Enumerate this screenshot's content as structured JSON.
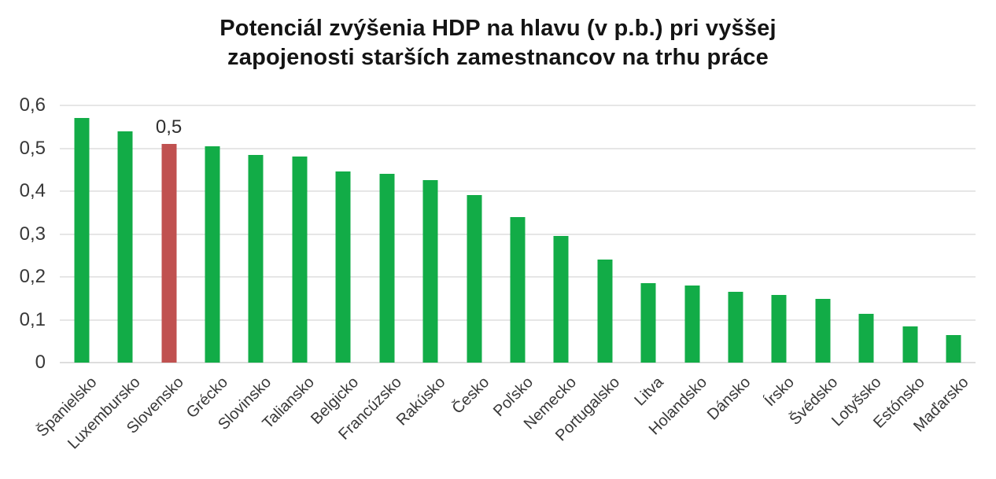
{
  "chart": {
    "title_line1": "Potenciál zvýšenia HDP na hlavu (v p.b.) pri vyššej",
    "title_line2": "zapojenosti starších zamestnancov na trhu práce"
  },
  "chart_data": {
    "type": "bar",
    "title": "Potenciál zvýšenia HDP na hlavu (v p.b.) pri vyššej zapojenosti starších zamestnancov na trhu práce",
    "xlabel": "",
    "ylabel": "",
    "categories": [
      "Španielsko",
      "Luxembursko",
      "Slovensko",
      "Grécko",
      "Slovinsko",
      "Taliansko",
      "Belgicko",
      "Francúzsko",
      "Rakúsko",
      "Česko",
      "Poľsko",
      "Nemecko",
      "Portugalsko",
      "Litva",
      "Holandsko",
      "Dánsko",
      "Írsko",
      "Švédsko",
      "Lotyšsko",
      "Estónsko",
      "Maďarsko"
    ],
    "values": [
      0.57,
      0.54,
      0.51,
      0.505,
      0.485,
      0.48,
      0.445,
      0.44,
      0.425,
      0.39,
      0.34,
      0.295,
      0.24,
      0.185,
      0.18,
      0.165,
      0.158,
      0.148,
      0.113,
      0.085,
      0.065
    ],
    "highlight_category": "Slovensko",
    "highlight_index": 2,
    "bar_color": "#12ac47",
    "highlight_color": "#c05150",
    "data_labels": [
      {
        "index": 2,
        "text": "0,5"
      }
    ],
    "ylim": [
      0,
      0.6
    ],
    "yticks": [
      {
        "value": 0,
        "label": "0"
      },
      {
        "value": 0.1,
        "label": "0,1"
      },
      {
        "value": 0.2,
        "label": "0,2"
      },
      {
        "value": 0.3,
        "label": "0,3"
      },
      {
        "value": 0.4,
        "label": "0,4"
      },
      {
        "value": 0.5,
        "label": "0,5"
      },
      {
        "value": 0.6,
        "label": "0,6"
      }
    ],
    "grid": true,
    "legend": false
  }
}
